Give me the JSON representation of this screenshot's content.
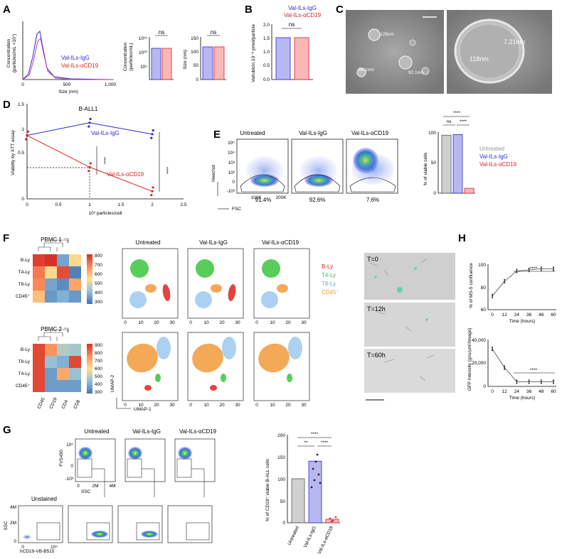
{
  "panels": {
    "A": "A",
    "B": "B",
    "C": "C",
    "D": "D",
    "E": "E",
    "F": "F",
    "G": "G",
    "H": "H"
  },
  "colors": {
    "igg": "#2a2ad6",
    "acd19": "#e02020",
    "untreated": "#999999",
    "bly": "#e02020",
    "t4": "#3cc43c",
    "t8": "#9ec8ee",
    "cd45": "#f29a3a"
  },
  "labels": {
    "igg": "Val-ILs-IgG",
    "acd19": "Val-ILs-αCD19",
    "untreated": "Untreated",
    "unstained": "Unstained",
    "ns": "ns",
    "stars4": "****",
    "stars2": "**"
  },
  "panelA": {
    "ylabel1": "Concentration",
    "ylabel2": "(particles/mL ×10⁷)",
    "xlabel": "Size (nm)",
    "xticks": [
      "0",
      "500",
      "1,000"
    ],
    "bar1_ylabel1": "Concentration",
    "bar1_ylabel2": "(particles/mL)",
    "bar1_ticks": [
      "10¹⁵",
      "10¹⁰",
      "10⁵"
    ],
    "bar2_ylabel": "Size (nm)",
    "bar2_ticks": [
      "150",
      "100",
      "50",
      "0"
    ]
  },
  "panelB": {
    "ylabel": "Valrubicin 10⁻⁸ pmol/particle",
    "yticks": [
      "2.0",
      "1.5",
      "1.0",
      "0.5",
      "0.0"
    ]
  },
  "panelC": {
    "m1": "129nm",
    "m2": "96.1nm",
    "m3": "92.1nm",
    "m4": "7.21nm",
    "m5": "118nm"
  },
  "chart_data": [
    {
      "type": "line",
      "title": "B-ALL1",
      "xlabel": "10³ particles/cell",
      "ylabel": "Viability by XTT assay",
      "x": [
        0,
        1,
        2
      ],
      "ylim": [
        0,
        1.5
      ],
      "xlim": [
        0,
        2.5
      ],
      "xticks": [
        "0",
        "0.5",
        "1",
        "1.5",
        "2",
        "2.5"
      ],
      "yticks": [
        "1.5",
        "1",
        "0.5",
        "0"
      ],
      "series": [
        {
          "name": "Val-ILs-IgG",
          "values": [
            1.0,
            1.2,
            1.02
          ]
        },
        {
          "name": "Val-ILs-αCD19",
          "values": [
            1.0,
            0.5,
            0.12
          ]
        }
      ]
    },
    {
      "type": "bar",
      "title": "",
      "ylabel": "% of viable cells",
      "categories": [
        "Untreated",
        "Val-ILs-IgG",
        "Val-ILs-αCD19"
      ],
      "values": [
        95,
        96,
        8
      ],
      "ylim": [
        0,
        100
      ],
      "yticks": [
        "100",
        "50",
        "0"
      ]
    },
    {
      "type": "bar",
      "title": "",
      "ylabel": "% of CD19⁺ viable B-ALL cells",
      "categories": [
        "Untreated",
        "Val-ILs-IgG",
        "Val-ILs-αCD19"
      ],
      "values": [
        100,
        140,
        8
      ],
      "ylim": [
        0,
        200
      ],
      "yticks": [
        "200",
        "150",
        "100",
        "50",
        "0"
      ]
    },
    {
      "type": "line",
      "title": "",
      "ylabel": "% of MS-5 confluence",
      "xlabel": "Time (hours)",
      "x": [
        0,
        12,
        24,
        36,
        48,
        60
      ],
      "values": [
        72,
        85,
        94,
        95,
        96,
        96
      ],
      "ylim": [
        60,
        100
      ],
      "yticks": [
        "100",
        "80",
        "60"
      ],
      "xticks": [
        "0",
        "12",
        "24",
        "36",
        "48",
        "60"
      ]
    },
    {
      "type": "line",
      "title": "",
      "ylabel": "GFP Intensity (gcu/µm²/image)",
      "xlabel": "Time (hours)",
      "x": [
        0,
        12,
        24,
        36,
        48,
        60
      ],
      "values": [
        32000,
        16000,
        4000,
        4000,
        4000,
        4000
      ],
      "ylim": [
        0,
        40000
      ],
      "yticks": [
        "40,000",
        "20,000",
        "0"
      ],
      "xticks": [
        "0",
        "12",
        "24",
        "36",
        "48",
        "60"
      ]
    }
  ],
  "panelE": {
    "ylabel": "Hoechst",
    "xlabel": "FSC",
    "ticks": [
      "10⁵",
      "10⁴",
      "10³",
      "10²",
      "0",
      "-10³"
    ],
    "xt": [
      "100K",
      "200K"
    ],
    "pct": [
      "91.4%",
      "92.6%",
      "7.6%"
    ]
  },
  "panelF": {
    "pbmc1": "PBMC 1",
    "pbmc2": "PBMC 2",
    "rows1": [
      "B-Ly",
      "T4-Ly",
      "T8-Ly",
      "CD45⁺"
    ],
    "rows2": [
      "B-Ly",
      "T8-Ly",
      "T4-Ly",
      "CD45⁺"
    ],
    "cols": [
      "CD45",
      "CD19",
      "CD4",
      "CD8"
    ],
    "scale1": [
      "800",
      "700",
      "600",
      "500",
      "400",
      "300"
    ],
    "scale2": [
      "900",
      "800",
      "700",
      "600",
      "500",
      "400",
      "300"
    ],
    "legend": [
      "B-Ly",
      "T4-Ly",
      "T8-Ly",
      "CD45⁺"
    ],
    "umap1": "UMAP-1",
    "umap2": "UMAP-2",
    "uticks": [
      "0",
      "10",
      "20",
      "30"
    ]
  },
  "panelG": {
    "ylab1": "FVS450",
    "xlab1": "SSC",
    "ylab2": "SSC",
    "xlab2": "hCD19-VB-B515",
    "t1": [
      "10⁵",
      "0",
      "-10³"
    ],
    "tx1": [
      "0",
      "2M",
      "4M"
    ],
    "t2": [
      "4M",
      "2M",
      "0"
    ],
    "tx2": [
      "0",
      "10⁵"
    ]
  },
  "panelH": {
    "t0": "T=0",
    "t12": "T=12h",
    "t60": "T=60h"
  }
}
